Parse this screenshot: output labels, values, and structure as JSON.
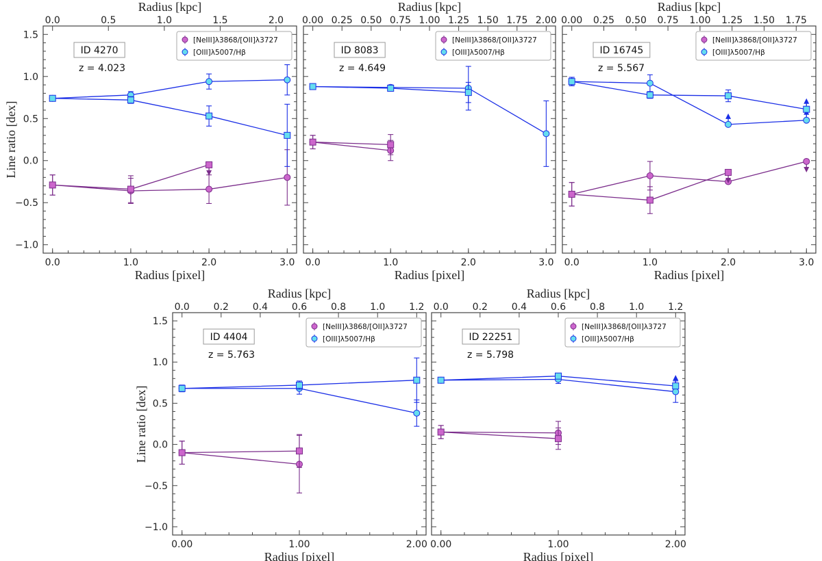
{
  "figure": {
    "common": {
      "xlabel_bottom": "Radius [pixel]",
      "xlabel_top": "Radius [kpc]",
      "ylabel": "Line ratio  [dex]",
      "ylim": [
        -1.1,
        1.6
      ],
      "yticks": [
        -1.0,
        -0.5,
        0.0,
        0.5,
        1.0,
        1.5
      ],
      "ytick_labels": [
        "−1.0",
        "−0.5",
        "0.0",
        "0.5",
        "1.0",
        "1.5"
      ],
      "legend": [
        "[NeIII]λ3868/[OII]λ3727",
        "[OIII]λ5007/Hβ"
      ],
      "colors": {
        "neiii_fill": "#cc66cc",
        "neiii_line": "#7b2d8b",
        "oiii_fill": "#66ddee",
        "oiii_line": "#1a2ee6",
        "frame": "#444444"
      }
    }
  },
  "chart_data": [
    {
      "type": "scatter",
      "id_label": "ID 4270",
      "z_label": "z = 4.023",
      "xlim": [
        -0.12,
        3.12
      ],
      "xticks": [
        0,
        1,
        2,
        3
      ],
      "xtick_labels": [
        "0.0",
        "1.0",
        "2.0",
        "3.0"
      ],
      "top_ticks": [
        {
          "x": 0.0,
          "label": "0.0"
        },
        {
          "x": 0.714,
          "label": "0.5"
        },
        {
          "x": 1.429,
          "label": "1.0"
        },
        {
          "x": 2.143,
          "label": "1.5"
        },
        {
          "x": 2.857,
          "label": "2.0"
        }
      ],
      "series": [
        {
          "name": "[NeIII]λ3868/[OII]λ3727",
          "marker": "circle",
          "family": "neiii",
          "x": [
            0,
            1,
            2,
            3
          ],
          "y": [
            -0.29,
            -0.36,
            -0.34,
            -0.2
          ],
          "err": [
            0.12,
            0.15,
            0.17,
            0.33
          ],
          "limits": [
            null,
            null,
            null,
            null
          ]
        },
        {
          "name": "[NeIII]λ3868/[OII]λ3727",
          "marker": "square",
          "family": "neiii",
          "x": [
            0,
            1,
            2
          ],
          "y": [
            -0.29,
            -0.34,
            -0.05
          ],
          "err": [
            0.12,
            0.16,
            0.0
          ],
          "limits": [
            null,
            null,
            "upper"
          ]
        },
        {
          "name": "[OIII]λ5007/Hβ",
          "marker": "circle",
          "family": "oiii",
          "x": [
            0,
            1,
            2,
            3
          ],
          "y": [
            0.74,
            0.78,
            0.94,
            0.96
          ],
          "err": [
            0.02,
            0.04,
            0.09,
            0.18
          ],
          "limits": [
            null,
            null,
            null,
            null
          ]
        },
        {
          "name": "[OIII]λ5007/Hβ",
          "marker": "square",
          "family": "oiii",
          "x": [
            0,
            1,
            2,
            3
          ],
          "y": [
            0.74,
            0.72,
            0.53,
            0.3
          ],
          "err": [
            0.02,
            0.04,
            0.12,
            0.37
          ],
          "limits": [
            null,
            null,
            null,
            null
          ]
        }
      ]
    },
    {
      "type": "scatter",
      "id_label": "ID 8083",
      "z_label": "z = 4.649",
      "xlim": [
        -0.12,
        3.12
      ],
      "xticks": [
        0,
        1,
        2,
        3
      ],
      "xtick_labels": [
        "0.0",
        "1.0",
        "2.0",
        "3.0"
      ],
      "top_ticks": [
        {
          "x": 0.0,
          "label": "0.00"
        },
        {
          "x": 0.375,
          "label": "0.25"
        },
        {
          "x": 0.75,
          "label": "0.50"
        },
        {
          "x": 1.125,
          "label": "0.75"
        },
        {
          "x": 1.5,
          "label": "1.00"
        },
        {
          "x": 1.875,
          "label": "1.25"
        },
        {
          "x": 2.25,
          "label": "1.50"
        },
        {
          "x": 2.625,
          "label": "1.75"
        },
        {
          "x": 3.0,
          "label": "2.00"
        }
      ],
      "series": [
        {
          "name": "[NeIII]λ3868/[OII]λ3727",
          "marker": "circle",
          "family": "neiii",
          "x": [
            0,
            1
          ],
          "y": [
            0.22,
            0.12
          ],
          "err": [
            0.08,
            0.12
          ],
          "limits": [
            null,
            null
          ]
        },
        {
          "name": "[NeIII]λ3868/[OII]λ3727",
          "marker": "square",
          "family": "neiii",
          "x": [
            0,
            1
          ],
          "y": [
            0.22,
            0.19
          ],
          "err": [
            0.08,
            0.12
          ],
          "limits": [
            null,
            null
          ]
        },
        {
          "name": "[OIII]λ5007/Hβ",
          "marker": "circle",
          "family": "oiii",
          "x": [
            0,
            1,
            2,
            3
          ],
          "y": [
            0.88,
            0.87,
            0.86,
            0.32
          ],
          "err": [
            0.02,
            0.03,
            0.26,
            0.39
          ],
          "limits": [
            null,
            null,
            null,
            null
          ]
        },
        {
          "name": "[OIII]λ5007/Hβ",
          "marker": "square",
          "family": "oiii",
          "x": [
            0,
            1,
            2
          ],
          "y": [
            0.88,
            0.86,
            0.81
          ],
          "err": [
            0.02,
            0.03,
            0.12
          ],
          "limits": [
            null,
            null,
            null
          ]
        }
      ]
    },
    {
      "type": "scatter",
      "id_label": "ID 16745",
      "z_label": "z = 5.567",
      "xlim": [
        -0.12,
        3.12
      ],
      "xticks": [
        0,
        1,
        2,
        3
      ],
      "xtick_labels": [
        "0.0",
        "1.0",
        "2.0",
        "3.0"
      ],
      "top_ticks": [
        {
          "x": 0.0,
          "label": "0.00"
        },
        {
          "x": 0.4098,
          "label": "0.25"
        },
        {
          "x": 0.8197,
          "label": "0.50"
        },
        {
          "x": 1.2295,
          "label": "0.75"
        },
        {
          "x": 1.6393,
          "label": "1.00"
        },
        {
          "x": 2.0492,
          "label": "1.25"
        },
        {
          "x": 2.459,
          "label": "1.50"
        },
        {
          "x": 2.8689,
          "label": "1.75"
        }
      ],
      "series": [
        {
          "name": "[NeIII]λ3868/[OII]λ3727",
          "marker": "circle",
          "family": "neiii",
          "x": [
            0,
            1,
            2,
            3
          ],
          "y": [
            -0.4,
            -0.18,
            -0.25,
            -0.01
          ],
          "err": [
            0.14,
            0.17,
            0.0,
            0.0
          ],
          "limits": [
            null,
            null,
            null,
            "upper"
          ]
        },
        {
          "name": "[NeIII]λ3868/[OII]λ3727",
          "marker": "square",
          "family": "neiii",
          "x": [
            0,
            1,
            2
          ],
          "y": [
            -0.4,
            -0.47,
            -0.14
          ],
          "err": [
            0.14,
            0.16,
            0.0
          ],
          "limits": [
            null,
            null,
            "upper"
          ]
        },
        {
          "name": "[OIII]λ5007/Hβ",
          "marker": "circle",
          "family": "oiii",
          "x": [
            0,
            1,
            2,
            3
          ],
          "y": [
            0.94,
            0.92,
            0.43,
            0.48
          ],
          "err": [
            0.05,
            0.1,
            0.0,
            0.0
          ],
          "limits": [
            null,
            null,
            "lower",
            "lower"
          ]
        },
        {
          "name": "[OIII]λ5007/Hβ",
          "marker": "square",
          "family": "oiii",
          "x": [
            0,
            1,
            2,
            3
          ],
          "y": [
            0.94,
            0.78,
            0.77,
            0.61
          ],
          "err": [
            0.05,
            0.04,
            0.07,
            0.0
          ],
          "limits": [
            null,
            null,
            null,
            "lower"
          ]
        }
      ]
    },
    {
      "type": "scatter",
      "id_label": "ID 4404",
      "z_label": "z = 5.763",
      "xlim": [
        -0.08,
        2.08
      ],
      "xticks": [
        0,
        1,
        2
      ],
      "xtick_labels": [
        "0.00",
        "1.00",
        "2.00"
      ],
      "top_ticks": [
        {
          "x": 0.0,
          "label": "0.0"
        },
        {
          "x": 0.3333,
          "label": "0.2"
        },
        {
          "x": 0.6667,
          "label": "0.4"
        },
        {
          "x": 1.0,
          "label": "0.6"
        },
        {
          "x": 1.3333,
          "label": "0.8"
        },
        {
          "x": 1.6667,
          "label": "1.0"
        },
        {
          "x": 2.0,
          "label": "1.2"
        }
      ],
      "series": [
        {
          "name": "[NeIII]λ3868/[OII]λ3727",
          "marker": "circle",
          "family": "neiii",
          "x": [
            0,
            1
          ],
          "y": [
            -0.1,
            -0.24
          ],
          "err": [
            0.14,
            0.35
          ],
          "limits": [
            null,
            null
          ]
        },
        {
          "name": "[NeIII]λ3868/[OII]λ3727",
          "marker": "square",
          "family": "neiii",
          "x": [
            0,
            1
          ],
          "y": [
            -0.1,
            -0.08
          ],
          "err": [
            0.14,
            0.2
          ],
          "limits": [
            null,
            null
          ]
        },
        {
          "name": "[OIII]λ5007/Hβ",
          "marker": "circle",
          "family": "oiii",
          "x": [
            0,
            1,
            2
          ],
          "y": [
            0.68,
            0.68,
            0.38
          ],
          "err": [
            0.04,
            0.07,
            0.16
          ],
          "limits": [
            null,
            null,
            null
          ]
        },
        {
          "name": "[OIII]λ5007/Hβ",
          "marker": "square",
          "family": "oiii",
          "x": [
            0,
            1,
            2
          ],
          "y": [
            0.68,
            0.72,
            0.78
          ],
          "err": [
            0.04,
            0.05,
            0.27
          ],
          "limits": [
            null,
            null,
            null
          ]
        }
      ]
    },
    {
      "type": "scatter",
      "id_label": "ID 22251",
      "z_label": "z = 5.798",
      "xlim": [
        -0.08,
        2.08
      ],
      "xticks": [
        0,
        1,
        2
      ],
      "xtick_labels": [
        "0.00",
        "1.00",
        "2.00"
      ],
      "top_ticks": [
        {
          "x": 0.0,
          "label": "0.0"
        },
        {
          "x": 0.3333,
          "label": "0.2"
        },
        {
          "x": 0.6667,
          "label": "0.4"
        },
        {
          "x": 1.0,
          "label": "0.6"
        },
        {
          "x": 1.3333,
          "label": "0.8"
        },
        {
          "x": 1.6667,
          "label": "1.0"
        },
        {
          "x": 2.0,
          "label": "1.2"
        }
      ],
      "series": [
        {
          "name": "[NeIII]λ3868/[OII]λ3727",
          "marker": "circle",
          "family": "neiii",
          "x": [
            0,
            1
          ],
          "y": [
            0.15,
            0.14
          ],
          "err": [
            0.08,
            0.14
          ],
          "limits": [
            null,
            null
          ]
        },
        {
          "name": "[NeIII]λ3868/[OII]λ3727",
          "marker": "square",
          "family": "neiii",
          "x": [
            0,
            1
          ],
          "y": [
            0.15,
            0.07
          ],
          "err": [
            0.08,
            0.13
          ],
          "limits": [
            null,
            null
          ]
        },
        {
          "name": "[OIII]λ5007/Hβ",
          "marker": "circle",
          "family": "oiii",
          "x": [
            0,
            1,
            2
          ],
          "y": [
            0.78,
            0.79,
            0.64
          ],
          "err": [
            0.02,
            0.05,
            0.13
          ],
          "limits": [
            null,
            null,
            null
          ]
        },
        {
          "name": "[OIII]λ5007/Hβ",
          "marker": "square",
          "family": "oiii",
          "x": [
            0,
            1,
            2
          ],
          "y": [
            0.78,
            0.83,
            0.71
          ],
          "err": [
            0.02,
            0.02,
            0.0
          ],
          "limits": [
            null,
            null,
            "lower"
          ]
        }
      ]
    }
  ]
}
